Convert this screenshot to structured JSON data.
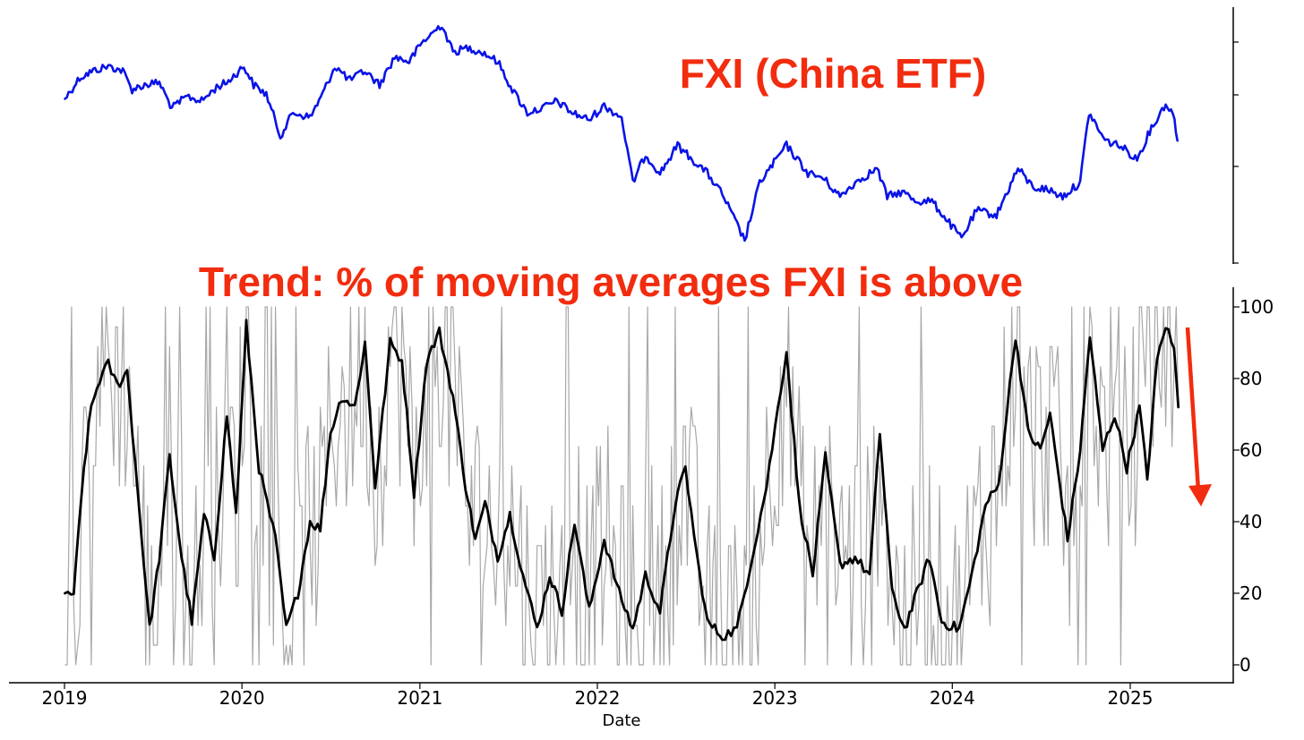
{
  "chart_data": [
    {
      "type": "line",
      "title": "FXI (China ETF)",
      "series": [
        {
          "color": "#0a13e6",
          "points": [
            [
              "2019-01-02",
              0.66
            ],
            [
              "2019-02-01",
              0.75
            ],
            [
              "2019-03-01",
              0.78
            ],
            [
              "2019-04-01",
              0.8
            ],
            [
              "2019-05-01",
              0.78
            ],
            [
              "2019-05-20",
              0.7
            ],
            [
              "2019-06-15",
              0.72
            ],
            [
              "2019-07-15",
              0.73
            ],
            [
              "2019-08-10",
              0.62
            ],
            [
              "2019-09-10",
              0.67
            ],
            [
              "2019-10-10",
              0.65
            ],
            [
              "2019-11-10",
              0.71
            ],
            [
              "2019-12-01",
              0.73
            ],
            [
              "2020-01-05",
              0.8
            ],
            [
              "2020-01-25",
              0.72
            ],
            [
              "2020-02-20",
              0.68
            ],
            [
              "2020-03-20",
              0.5
            ],
            [
              "2020-04-15",
              0.6
            ],
            [
              "2020-05-20",
              0.58
            ],
            [
              "2020-06-15",
              0.68
            ],
            [
              "2020-07-10",
              0.8
            ],
            [
              "2020-08-10",
              0.74
            ],
            [
              "2020-09-10",
              0.78
            ],
            [
              "2020-10-10",
              0.72
            ],
            [
              "2020-11-10",
              0.84
            ],
            [
              "2020-12-10",
              0.82
            ],
            [
              "2021-01-05",
              0.9
            ],
            [
              "2021-02-15",
              0.98
            ],
            [
              "2021-03-10",
              0.86
            ],
            [
              "2021-04-10",
              0.88
            ],
            [
              "2021-05-10",
              0.86
            ],
            [
              "2021-06-10",
              0.82
            ],
            [
              "2021-07-10",
              0.7
            ],
            [
              "2021-08-10",
              0.6
            ],
            [
              "2021-09-10",
              0.62
            ],
            [
              "2021-10-10",
              0.65
            ],
            [
              "2021-11-10",
              0.6
            ],
            [
              "2021-12-15",
              0.57
            ],
            [
              "2022-01-15",
              0.63
            ],
            [
              "2022-02-20",
              0.58
            ],
            [
              "2022-03-15",
              0.3
            ],
            [
              "2022-04-10",
              0.42
            ],
            [
              "2022-05-10",
              0.34
            ],
            [
              "2022-06-15",
              0.46
            ],
            [
              "2022-07-15",
              0.4
            ],
            [
              "2022-08-15",
              0.34
            ],
            [
              "2022-09-15",
              0.25
            ],
            [
              "2022-10-31",
              0.05
            ],
            [
              "2022-12-01",
              0.3
            ],
            [
              "2023-01-25",
              0.46
            ],
            [
              "2023-03-10",
              0.34
            ],
            [
              "2023-04-10",
              0.32
            ],
            [
              "2023-05-15",
              0.24
            ],
            [
              "2023-06-15",
              0.3
            ],
            [
              "2023-07-30",
              0.36
            ],
            [
              "2023-08-20",
              0.24
            ],
            [
              "2023-09-20",
              0.26
            ],
            [
              "2023-10-20",
              0.22
            ],
            [
              "2023-11-20",
              0.22
            ],
            [
              "2024-01-20",
              0.06
            ],
            [
              "2024-02-20",
              0.18
            ],
            [
              "2024-04-01",
              0.16
            ],
            [
              "2024-05-15",
              0.36
            ],
            [
              "2024-06-15",
              0.28
            ],
            [
              "2024-07-15",
              0.27
            ],
            [
              "2024-08-15",
              0.24
            ],
            [
              "2024-09-20",
              0.3
            ],
            [
              "2024-10-08",
              0.6
            ],
            [
              "2024-11-10",
              0.48
            ],
            [
              "2024-12-10",
              0.46
            ],
            [
              "2025-01-15",
              0.4
            ],
            [
              "2025-02-10",
              0.52
            ],
            [
              "2025-03-15",
              0.64
            ],
            [
              "2025-04-02",
              0.58
            ],
            [
              "2025-04-08",
              0.48
            ]
          ]
        }
      ]
    },
    {
      "type": "line",
      "title": "Trend: % of moving averages FXI is above",
      "xlabel": "Date",
      "ylim": [
        0,
        100
      ],
      "yticks": [
        0,
        20,
        40,
        60,
        80,
        100
      ],
      "xticks": [
        "2019",
        "2020",
        "2021",
        "2022",
        "2023",
        "2024",
        "2025"
      ],
      "series": [
        {
          "color": "#000000",
          "points": [
            [
              "2019-01-02",
              20
            ],
            [
              "2019-01-20",
              20
            ],
            [
              "2019-02-10",
              55
            ],
            [
              "2019-02-25",
              72
            ],
            [
              "2019-03-15",
              80
            ],
            [
              "2019-04-01",
              84
            ],
            [
              "2019-04-20",
              78
            ],
            [
              "2019-05-10",
              82
            ],
            [
              "2019-06-01",
              48
            ],
            [
              "2019-06-25",
              10
            ],
            [
              "2019-07-15",
              30
            ],
            [
              "2019-08-05",
              58
            ],
            [
              "2019-08-30",
              30
            ],
            [
              "2019-09-20",
              12
            ],
            [
              "2019-10-15",
              42
            ],
            [
              "2019-11-05",
              30
            ],
            [
              "2019-12-01",
              70
            ],
            [
              "2019-12-20",
              42
            ],
            [
              "2020-01-10",
              95
            ],
            [
              "2020-02-05",
              55
            ],
            [
              "2020-03-10",
              35
            ],
            [
              "2020-04-01",
              10
            ],
            [
              "2020-04-25",
              20
            ],
            [
              "2020-05-20",
              40
            ],
            [
              "2020-06-10",
              38
            ],
            [
              "2020-07-01",
              65
            ],
            [
              "2020-07-25",
              75
            ],
            [
              "2020-08-20",
              72
            ],
            [
              "2020-09-10",
              90
            ],
            [
              "2020-10-01",
              50
            ],
            [
              "2020-11-01",
              90
            ],
            [
              "2020-11-25",
              85
            ],
            [
              "2020-12-20",
              48
            ],
            [
              "2021-01-15",
              85
            ],
            [
              "2021-02-10",
              93
            ],
            [
              "2021-03-10",
              75
            ],
            [
              "2021-04-05",
              50
            ],
            [
              "2021-04-25",
              35
            ],
            [
              "2021-05-15",
              45
            ],
            [
              "2021-06-10",
              30
            ],
            [
              "2021-07-05",
              42
            ],
            [
              "2021-08-01",
              25
            ],
            [
              "2021-08-30",
              10
            ],
            [
              "2021-09-25",
              25
            ],
            [
              "2021-10-20",
              15
            ],
            [
              "2021-11-15",
              40
            ],
            [
              "2021-12-15",
              15
            ],
            [
              "2022-01-15",
              35
            ],
            [
              "2022-02-15",
              20
            ],
            [
              "2022-03-15",
              10
            ],
            [
              "2022-04-10",
              25
            ],
            [
              "2022-05-10",
              15
            ],
            [
              "2022-06-10",
              45
            ],
            [
              "2022-07-01",
              55
            ],
            [
              "2022-07-25",
              30
            ],
            [
              "2022-08-15",
              12
            ],
            [
              "2022-09-15",
              8
            ],
            [
              "2022-10-15",
              10
            ],
            [
              "2022-11-15",
              30
            ],
            [
              "2022-12-15",
              50
            ],
            [
              "2023-01-25",
              88
            ],
            [
              "2023-02-20",
              45
            ],
            [
              "2023-03-20",
              25
            ],
            [
              "2023-04-15",
              58
            ],
            [
              "2023-05-15",
              28
            ],
            [
              "2023-06-15",
              30
            ],
            [
              "2023-07-15",
              25
            ],
            [
              "2023-08-05",
              65
            ],
            [
              "2023-08-30",
              20
            ],
            [
              "2023-09-25",
              10
            ],
            [
              "2023-10-20",
              20
            ],
            [
              "2023-11-15",
              30
            ],
            [
              "2023-12-10",
              12
            ],
            [
              "2024-01-15",
              10
            ],
            [
              "2024-02-10",
              25
            ],
            [
              "2024-03-10",
              45
            ],
            [
              "2024-04-05",
              50
            ],
            [
              "2024-05-10",
              92
            ],
            [
              "2024-06-05",
              65
            ],
            [
              "2024-06-30",
              60
            ],
            [
              "2024-07-20",
              70
            ],
            [
              "2024-08-25",
              35
            ],
            [
              "2024-09-20",
              60
            ],
            [
              "2024-10-10",
              92
            ],
            [
              "2024-11-05",
              60
            ],
            [
              "2024-11-30",
              70
            ],
            [
              "2024-12-25",
              55
            ],
            [
              "2025-01-20",
              72
            ],
            [
              "2025-02-05",
              52
            ],
            [
              "2025-02-25",
              85
            ],
            [
              "2025-03-15",
              95
            ],
            [
              "2025-04-01",
              88
            ],
            [
              "2025-04-10",
              72
            ]
          ]
        }
      ]
    }
  ],
  "annotation": {
    "color": "#f22c0f"
  }
}
